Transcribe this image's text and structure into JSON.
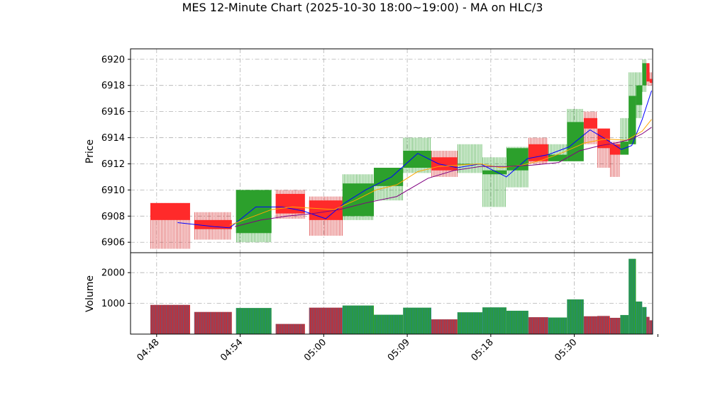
{
  "chart_data": {
    "type": "candlestick",
    "title": "MES 12-Minute Chart (2025-10-30 18:00~19:00) - MA on HLC/3",
    "price_panel": {
      "ylabel": "Price",
      "ylim": [
        6905.2,
        6920.8
      ],
      "yticks": [
        6906,
        6908,
        6910,
        6912,
        6914,
        6916,
        6918,
        6920
      ],
      "grid": true
    },
    "volume_panel": {
      "ylabel": "Volume",
      "ylim": [
        0,
        2650
      ],
      "yticks": [
        1000,
        2000
      ],
      "grid": true
    },
    "x_axis": {
      "xlim": [
        -2.5,
        47.5
      ],
      "tick_positions": [
        0,
        8,
        16,
        24,
        32,
        40,
        48
      ],
      "tick_labels": [
        "04:48",
        "04:54",
        "05:00",
        "05:09",
        "05:18",
        "05:30",
        ""
      ],
      "tick_rotation": 45
    },
    "colors": {
      "up": "#2ca02c",
      "down": "#ff2a2a",
      "wick_up": "#2ca02c",
      "wick_down": "#d62728",
      "volume_face": "#d62728",
      "volume_edge": "#1f77b4",
      "volume_face_up": "#2ca02c",
      "ma_fast": "#0000ff",
      "ma_mid": "#ffa500",
      "ma_slow": "#800080"
    },
    "candles": [
      {
        "x_start": -0.6,
        "x_end": 3.2,
        "open": 6909.0,
        "high": 6909.0,
        "low": 6905.5,
        "close": 6907.7,
        "volume": 950
      },
      {
        "x_start": 3.6,
        "x_end": 7.2,
        "open": 6907.7,
        "high": 6908.3,
        "low": 6906.2,
        "close": 6907.0,
        "volume": 720
      },
      {
        "x_start": 7.6,
        "x_end": 11.0,
        "open": 6906.7,
        "high": 6910.0,
        "low": 6906.0,
        "close": 6910.0,
        "volume": 850
      },
      {
        "x_start": 11.4,
        "x_end": 14.2,
        "open": 6909.7,
        "high": 6910.0,
        "low": 6907.8,
        "close": 6908.2,
        "volume": 330
      },
      {
        "x_start": 14.6,
        "x_end": 17.8,
        "open": 6909.2,
        "high": 6909.5,
        "low": 6906.5,
        "close": 6907.7,
        "volume": 860
      },
      {
        "x_start": 17.8,
        "x_end": 20.8,
        "open": 6908.0,
        "high": 6911.2,
        "low": 6907.7,
        "close": 6910.5,
        "volume": 930
      },
      {
        "x_start": 20.8,
        "x_end": 23.6,
        "open": 6910.3,
        "high": 6911.7,
        "low": 6909.2,
        "close": 6911.7,
        "volume": 630
      },
      {
        "x_start": 23.6,
        "x_end": 26.3,
        "open": 6911.7,
        "high": 6914.0,
        "low": 6911.3,
        "close": 6913.0,
        "volume": 860
      },
      {
        "x_start": 26.3,
        "x_end": 28.8,
        "open": 6912.5,
        "high": 6913.0,
        "low": 6911.0,
        "close": 6911.5,
        "volume": 480
      },
      {
        "x_start": 28.8,
        "x_end": 31.2,
        "open": 6912.0,
        "high": 6913.5,
        "low": 6911.3,
        "close": 6912.0,
        "volume": 710
      },
      {
        "x_start": 31.2,
        "x_end": 33.5,
        "open": 6911.2,
        "high": 6912.5,
        "low": 6908.7,
        "close": 6911.5,
        "volume": 870
      },
      {
        "x_start": 33.5,
        "x_end": 35.6,
        "open": 6911.5,
        "high": 6913.3,
        "low": 6910.2,
        "close": 6913.2,
        "volume": 760
      },
      {
        "x_start": 35.6,
        "x_end": 37.5,
        "open": 6913.5,
        "high": 6914.0,
        "low": 6912.0,
        "close": 6912.2,
        "volume": 550
      },
      {
        "x_start": 37.5,
        "x_end": 39.3,
        "open": 6912.2,
        "high": 6913.5,
        "low": 6912.2,
        "close": 6912.7,
        "volume": 540
      },
      {
        "x_start": 39.3,
        "x_end": 40.9,
        "open": 6912.2,
        "high": 6916.2,
        "low": 6912.2,
        "close": 6915.2,
        "volume": 1130
      },
      {
        "x_start": 40.9,
        "x_end": 42.2,
        "open": 6915.5,
        "high": 6916.0,
        "low": 6913.5,
        "close": 6914.7,
        "volume": 580
      },
      {
        "x_start": 42.2,
        "x_end": 43.4,
        "open": 6914.7,
        "high": 6914.7,
        "low": 6911.7,
        "close": 6913.2,
        "volume": 590
      },
      {
        "x_start": 43.4,
        "x_end": 44.4,
        "open": 6913.5,
        "high": 6913.7,
        "low": 6911.0,
        "close": 6912.7,
        "volume": 530
      },
      {
        "x_start": 44.4,
        "x_end": 45.2,
        "open": 6912.7,
        "high": 6915.5,
        "low": 6912.7,
        "close": 6913.7,
        "volume": 620
      },
      {
        "x_start": 45.2,
        "x_end": 45.9,
        "open": 6913.5,
        "high": 6919.0,
        "low": 6913.5,
        "close": 6917.2,
        "volume": 2450
      },
      {
        "x_start": 45.9,
        "x_end": 46.5,
        "open": 6916.5,
        "high": 6919.0,
        "low": 6915.5,
        "close": 6918.0,
        "volume": 1060
      },
      {
        "x_start": 46.5,
        "x_end": 46.9,
        "open": 6918.0,
        "high": 6920.0,
        "low": 6917.5,
        "close": 6919.7,
        "volume": 880
      },
      {
        "x_start": 46.9,
        "x_end": 47.2,
        "open": 6919.7,
        "high": 6919.7,
        "low": 6918.0,
        "close": 6918.3,
        "volume": 560
      },
      {
        "x_start": 47.2,
        "x_end": 47.45,
        "open": 6918.5,
        "high": 6919.0,
        "low": 6918.0,
        "close": 6918.2,
        "volume": 450
      }
    ],
    "ma_series": [
      {
        "key": "ma_fast",
        "x": [
          2.0,
          5.5,
          7.0,
          9.5,
          12.0,
          14.0,
          16.2,
          18.0,
          20.0,
          22.5,
          25.0,
          27.0,
          28.8,
          31.0,
          33.5,
          35.5,
          37.5,
          39.5,
          41.5,
          43.0,
          44.5,
          45.5,
          46.5,
          47.4
        ],
        "y": [
          6907.5,
          6907.2,
          6907.1,
          6908.7,
          6908.7,
          6908.4,
          6907.8,
          6909.0,
          6910.0,
          6911.0,
          6912.8,
          6912.0,
          6911.7,
          6912.0,
          6911.0,
          6912.4,
          6912.7,
          6913.3,
          6914.6,
          6913.9,
          6913.1,
          6913.4,
          6915.4,
          6917.6
        ]
      },
      {
        "key": "ma_mid",
        "x": [
          7.0,
          9.0,
          11.0,
          13.0,
          15.0,
          17.0,
          19.0,
          21.0,
          23.0,
          25.0,
          27.0,
          29.0,
          31.0,
          33.0,
          35.0,
          37.0,
          39.0,
          41.0,
          43.0,
          45.0,
          46.5,
          47.4
        ],
        "y": [
          6907.3,
          6907.9,
          6908.5,
          6908.7,
          6908.6,
          6908.5,
          6909.2,
          6910.0,
          6910.4,
          6911.4,
          6911.8,
          6911.9,
          6912.0,
          6911.7,
          6911.9,
          6912.3,
          6912.9,
          6913.6,
          6913.9,
          6913.8,
          6914.5,
          6915.4
        ]
      },
      {
        "key": "ma_slow",
        "x": [
          7.5,
          10.0,
          12.5,
          15.0,
          17.5,
          20.0,
          23.0,
          26.0,
          28.5,
          31.0,
          33.5,
          36.0,
          38.5,
          40.5,
          42.5,
          44.0,
          45.5,
          46.5,
          47.4
        ],
        "y": [
          6907.2,
          6907.7,
          6908.0,
          6908.2,
          6908.5,
          6909.0,
          6909.5,
          6910.9,
          6911.5,
          6911.8,
          6911.8,
          6911.9,
          6912.1,
          6913.0,
          6913.4,
          6913.6,
          6913.9,
          6914.3,
          6914.8
        ]
      }
    ]
  }
}
